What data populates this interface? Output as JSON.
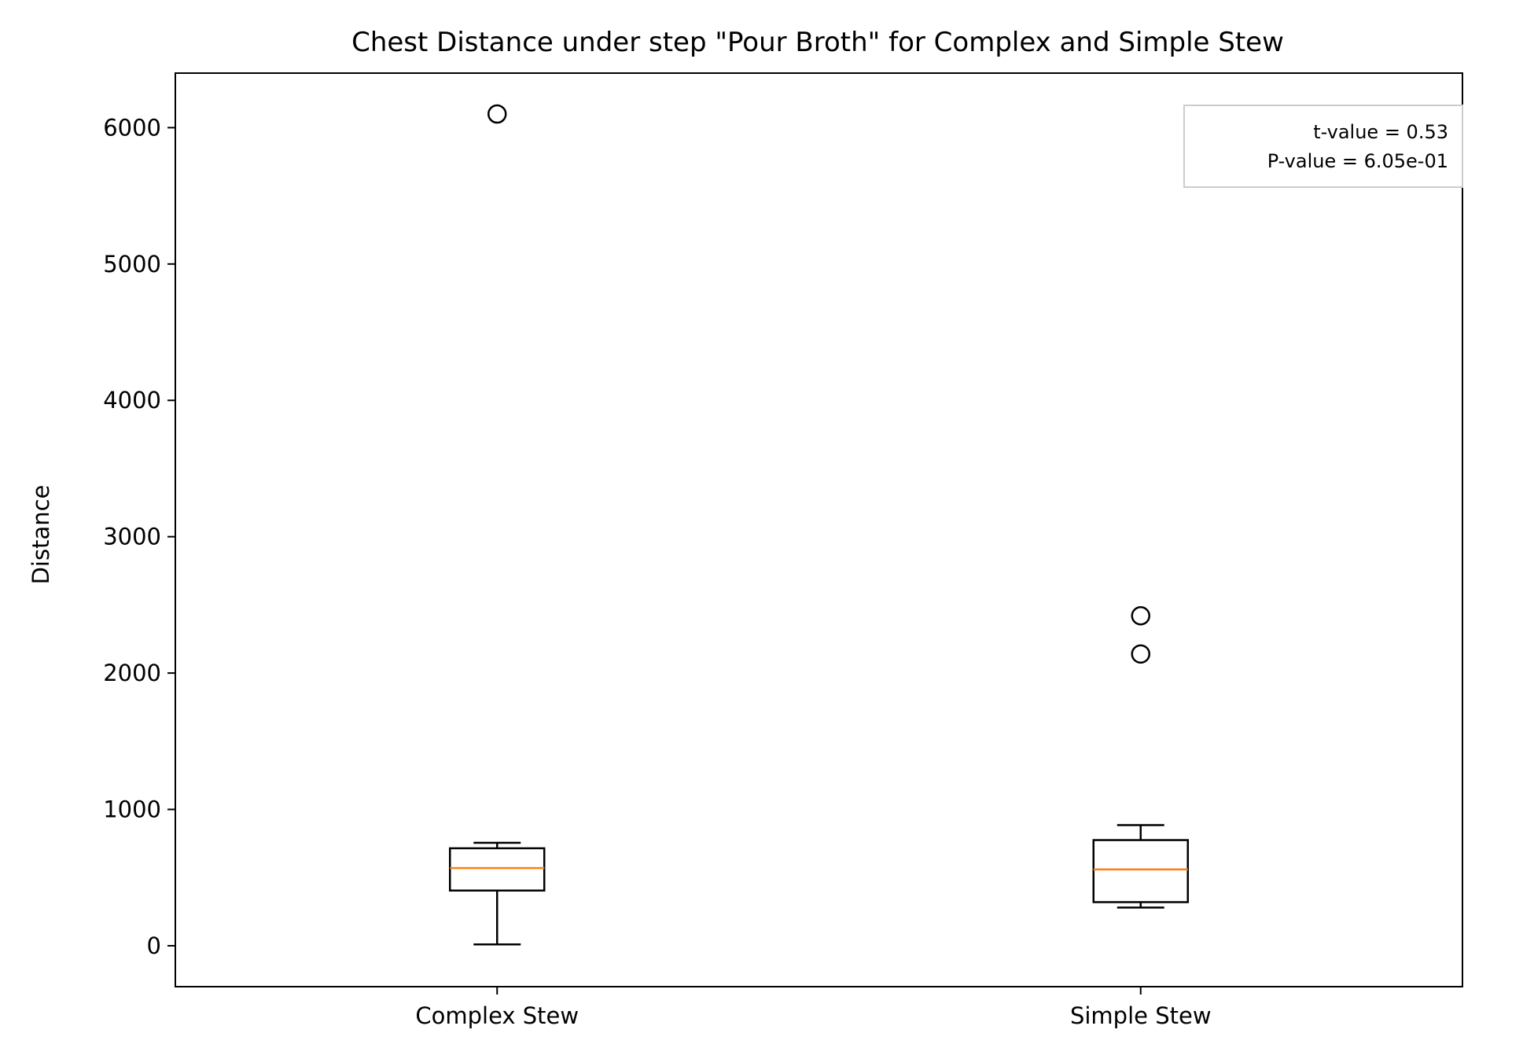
{
  "chart_data": {
    "type": "boxplot",
    "title": "Chest Distance under step \"Pour Broth\" for Complex and Simple Stew",
    "xlabel": "",
    "ylabel": "Distance",
    "ylim": [
      -300,
      6400
    ],
    "yticks": [
      0,
      1000,
      2000,
      3000,
      4000,
      5000,
      6000
    ],
    "categories": [
      "Complex Stew",
      "Simple Stew"
    ],
    "boxes": [
      {
        "category": "Complex Stew",
        "whisker_low": 10,
        "q1": 405,
        "median": 570,
        "q3": 715,
        "whisker_high": 755,
        "outliers": [
          6100
        ]
      },
      {
        "category": "Simple Stew",
        "whisker_low": 280,
        "q1": 320,
        "median": 560,
        "q3": 775,
        "whisker_high": 885,
        "outliers": [
          2140,
          2420
        ]
      }
    ],
    "annotation": {
      "placement": "top-right",
      "lines": [
        "t-value = 0.53",
        "P-value = 6.05e-01"
      ]
    },
    "colors": {
      "median": "#ff7f0e",
      "box": "#000000",
      "annotation_border": "#cccccc"
    }
  }
}
